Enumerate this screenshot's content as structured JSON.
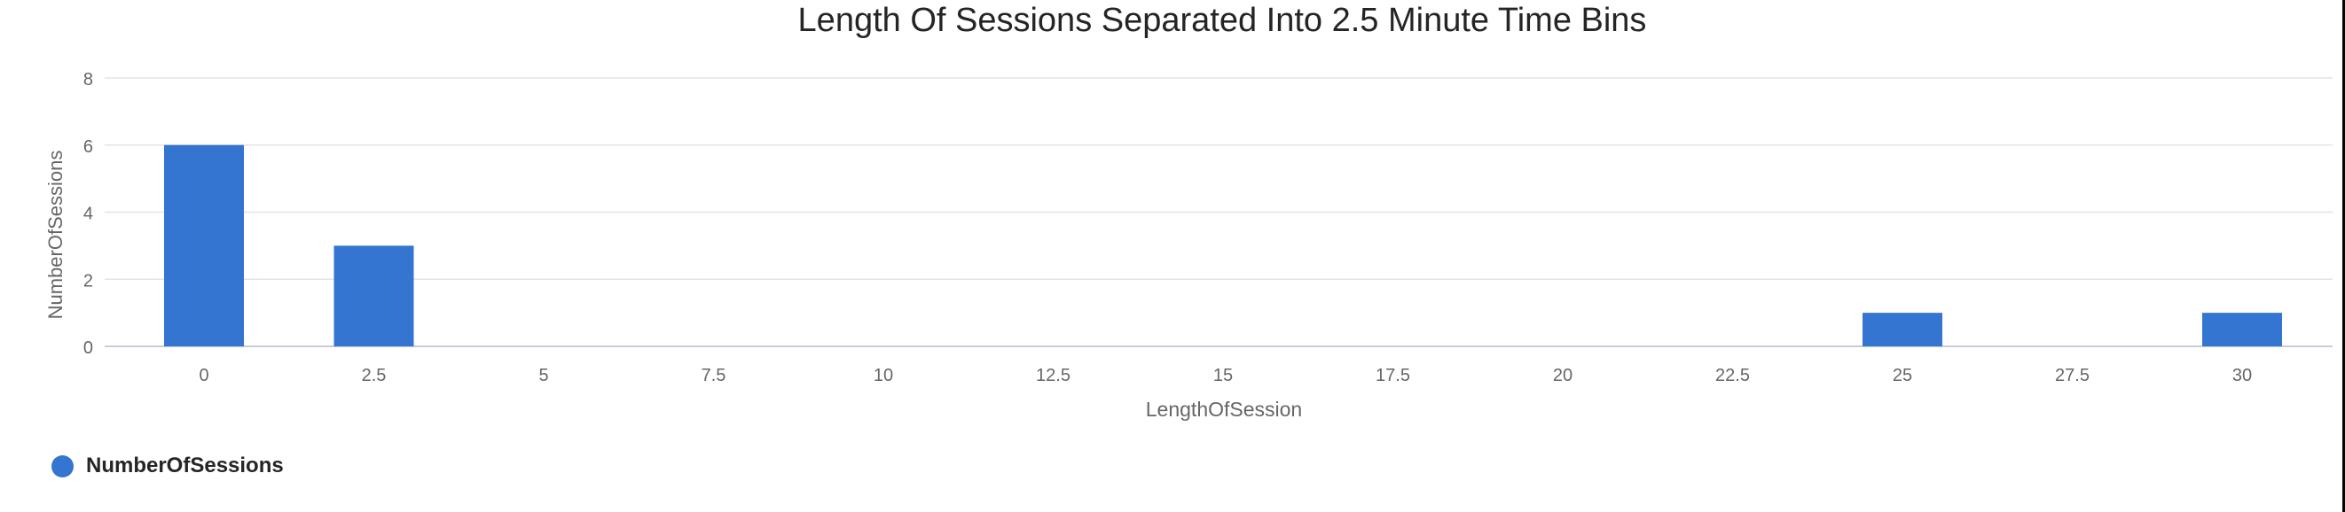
{
  "chart_data": {
    "type": "bar",
    "title": "Length Of Sessions Separated Into 2.5 Minute Time Bins",
    "xlabel": "LengthOfSession",
    "ylabel": "NumberOfSessions",
    "categories": [
      "0",
      "2.5",
      "5",
      "7.5",
      "10",
      "12.5",
      "15",
      "17.5",
      "20",
      "22.5",
      "25",
      "27.5",
      "30"
    ],
    "series": [
      {
        "name": "NumberOfSessions",
        "values": [
          6,
          3,
          0,
          0,
          0,
          0,
          0,
          0,
          0,
          0,
          1,
          0,
          1
        ]
      }
    ],
    "yticks": [
      0,
      2,
      4,
      6,
      8
    ],
    "ylim": [
      0,
      8
    ],
    "grid": true,
    "legend_position": "bottom-left",
    "colors": {
      "bar": "#3375d0",
      "grid": "#e4e4e4",
      "axis": "#c8cbe0",
      "text": "#666666",
      "title": "#252525"
    }
  }
}
